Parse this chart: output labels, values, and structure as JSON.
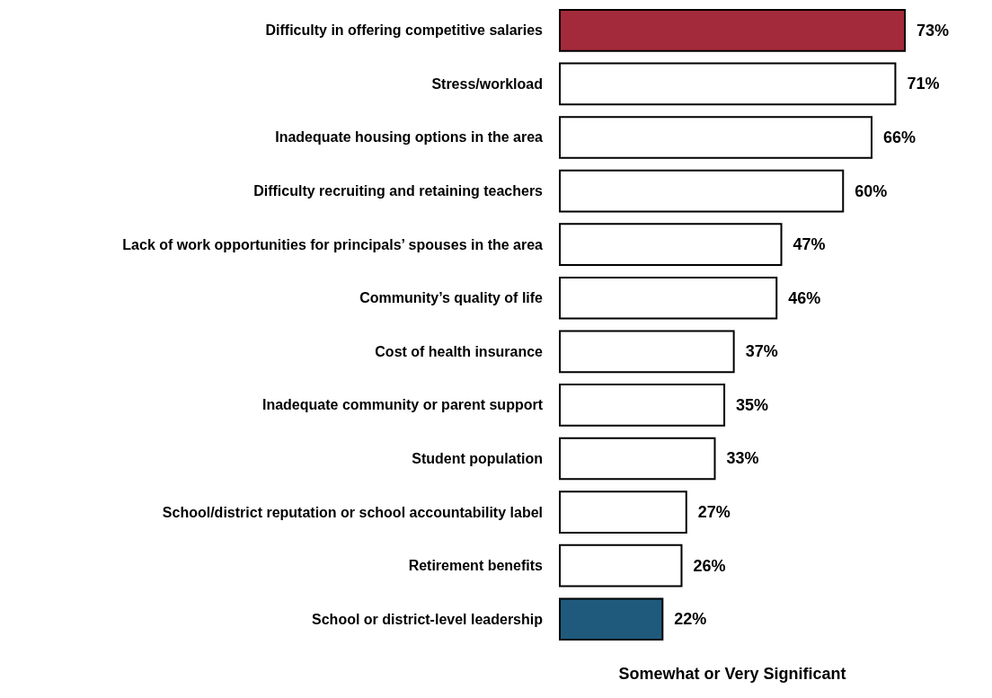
{
  "chart_data": {
    "type": "bar",
    "orientation": "horizontal",
    "xlabel": "Somewhat or Very Significant",
    "categories": [
      "Difficulty in offering competitive salaries",
      "Stress/workload",
      "Inadequate housing options in the area",
      "Difficulty recruiting and retaining teachers",
      "Lack of work opportunities for principals’ spouses in the area",
      "Community’s quality of life",
      "Cost of health insurance",
      "Inadequate community or parent support",
      "Student population",
      "School/district reputation or school accountability label",
      "Retirement benefits",
      "School or district-level leadership"
    ],
    "values": [
      73,
      71,
      66,
      60,
      47,
      46,
      37,
      35,
      33,
      27,
      26,
      22
    ],
    "value_labels": [
      "73%",
      "71%",
      "66%",
      "60%",
      "47%",
      "46%",
      "37%",
      "35%",
      "33%",
      "27%",
      "26%",
      "22%"
    ],
    "colors": [
      "#a32a3a",
      "#ffffff",
      "#ffffff",
      "#ffffff",
      "#ffffff",
      "#ffffff",
      "#ffffff",
      "#ffffff",
      "#ffffff",
      "#ffffff",
      "#ffffff",
      "#1f5a7c"
    ],
    "tick_labels": "y",
    "grid": false
  }
}
